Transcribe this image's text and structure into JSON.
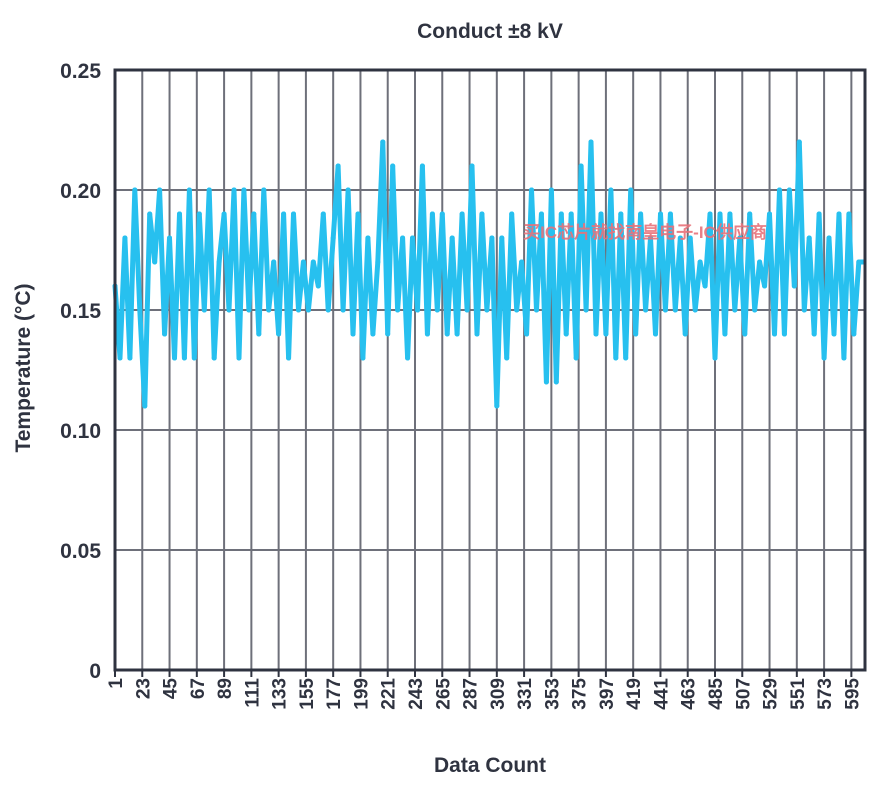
{
  "chart_data": {
    "type": "line",
    "title": "Conduct ±8 kV",
    "xlabel": "Data Count",
    "ylabel": "Temperature (°C)",
    "ylim": [
      0,
      0.25
    ],
    "xlim": [
      1,
      606
    ],
    "y_ticks": [
      "0",
      "0.05",
      "0.10",
      "0.15",
      "0.20",
      "0.25"
    ],
    "y_tick_values": [
      0,
      0.05,
      0.1,
      0.15,
      0.2,
      0.25
    ],
    "x_ticks": [
      "1",
      "23",
      "45",
      "67",
      "89",
      "111",
      "133",
      "155",
      "177",
      "199",
      "221",
      "243",
      "265",
      "287",
      "309",
      "331",
      "353",
      "375",
      "397",
      "419",
      "441",
      "463",
      "485",
      "507",
      "529",
      "551",
      "573",
      "595"
    ],
    "x_tick_values": [
      1,
      23,
      45,
      67,
      89,
      111,
      133,
      155,
      177,
      199,
      221,
      243,
      265,
      287,
      309,
      331,
      353,
      375,
      397,
      419,
      441,
      463,
      485,
      507,
      529,
      551,
      573,
      595
    ],
    "grid": true,
    "watermark": "买IC芯片就找南皇电子-IC供应商",
    "colors": {
      "series": "#27c0ef",
      "grid": "#6e707a",
      "axis": "#2f3340",
      "watermark": "#e8727a"
    },
    "series": [
      {
        "name": "",
        "x": [
          1,
          5,
          9,
          13,
          17,
          21,
          25,
          29,
          33,
          37,
          41,
          45,
          49,
          53,
          57,
          61,
          65,
          69,
          73,
          77,
          81,
          85,
          89,
          93,
          97,
          101,
          105,
          109,
          113,
          117,
          121,
          125,
          129,
          133,
          137,
          141,
          145,
          149,
          153,
          157,
          161,
          165,
          169,
          173,
          177,
          181,
          185,
          189,
          193,
          197,
          201,
          205,
          209,
          213,
          217,
          221,
          225,
          229,
          233,
          237,
          241,
          245,
          249,
          253,
          257,
          261,
          265,
          269,
          273,
          277,
          281,
          285,
          289,
          293,
          297,
          301,
          305,
          309,
          313,
          317,
          321,
          325,
          329,
          333,
          337,
          341,
          345,
          349,
          353,
          357,
          361,
          365,
          369,
          373,
          377,
          381,
          385,
          389,
          393,
          397,
          401,
          405,
          409,
          413,
          417,
          421,
          425,
          429,
          433,
          437,
          441,
          445,
          449,
          453,
          457,
          461,
          465,
          469,
          473,
          477,
          481,
          485,
          489,
          493,
          497,
          501,
          505,
          509,
          513,
          517,
          521,
          525,
          529,
          533,
          537,
          541,
          545,
          549,
          553,
          557,
          561,
          565,
          569,
          573,
          577,
          581,
          585,
          589,
          593,
          597,
          601,
          605
        ],
        "values": [
          0.16,
          0.13,
          0.18,
          0.13,
          0.2,
          0.15,
          0.11,
          0.19,
          0.17,
          0.2,
          0.14,
          0.18,
          0.13,
          0.19,
          0.13,
          0.2,
          0.13,
          0.19,
          0.15,
          0.2,
          0.13,
          0.17,
          0.19,
          0.15,
          0.2,
          0.13,
          0.2,
          0.15,
          0.19,
          0.14,
          0.2,
          0.15,
          0.17,
          0.14,
          0.19,
          0.13,
          0.19,
          0.15,
          0.17,
          0.15,
          0.17,
          0.16,
          0.19,
          0.15,
          0.18,
          0.21,
          0.15,
          0.2,
          0.14,
          0.19,
          0.13,
          0.18,
          0.14,
          0.17,
          0.22,
          0.14,
          0.21,
          0.15,
          0.18,
          0.13,
          0.18,
          0.15,
          0.21,
          0.14,
          0.19,
          0.15,
          0.19,
          0.14,
          0.18,
          0.14,
          0.19,
          0.15,
          0.21,
          0.14,
          0.19,
          0.15,
          0.18,
          0.11,
          0.18,
          0.13,
          0.19,
          0.15,
          0.17,
          0.14,
          0.2,
          0.15,
          0.19,
          0.12,
          0.2,
          0.12,
          0.19,
          0.14,
          0.19,
          0.13,
          0.21,
          0.15,
          0.22,
          0.14,
          0.19,
          0.14,
          0.2,
          0.13,
          0.19,
          0.13,
          0.2,
          0.14,
          0.19,
          0.15,
          0.18,
          0.14,
          0.19,
          0.15,
          0.19,
          0.15,
          0.18,
          0.14,
          0.18,
          0.15,
          0.17,
          0.16,
          0.19,
          0.13,
          0.19,
          0.14,
          0.19,
          0.15,
          0.18,
          0.14,
          0.19,
          0.15,
          0.17,
          0.16,
          0.19,
          0.14,
          0.2,
          0.14,
          0.2,
          0.16,
          0.22,
          0.15,
          0.18,
          0.14,
          0.19,
          0.13,
          0.18,
          0.14,
          0.19,
          0.13,
          0.19,
          0.14,
          0.17,
          0.17
        ]
      }
    ]
  }
}
